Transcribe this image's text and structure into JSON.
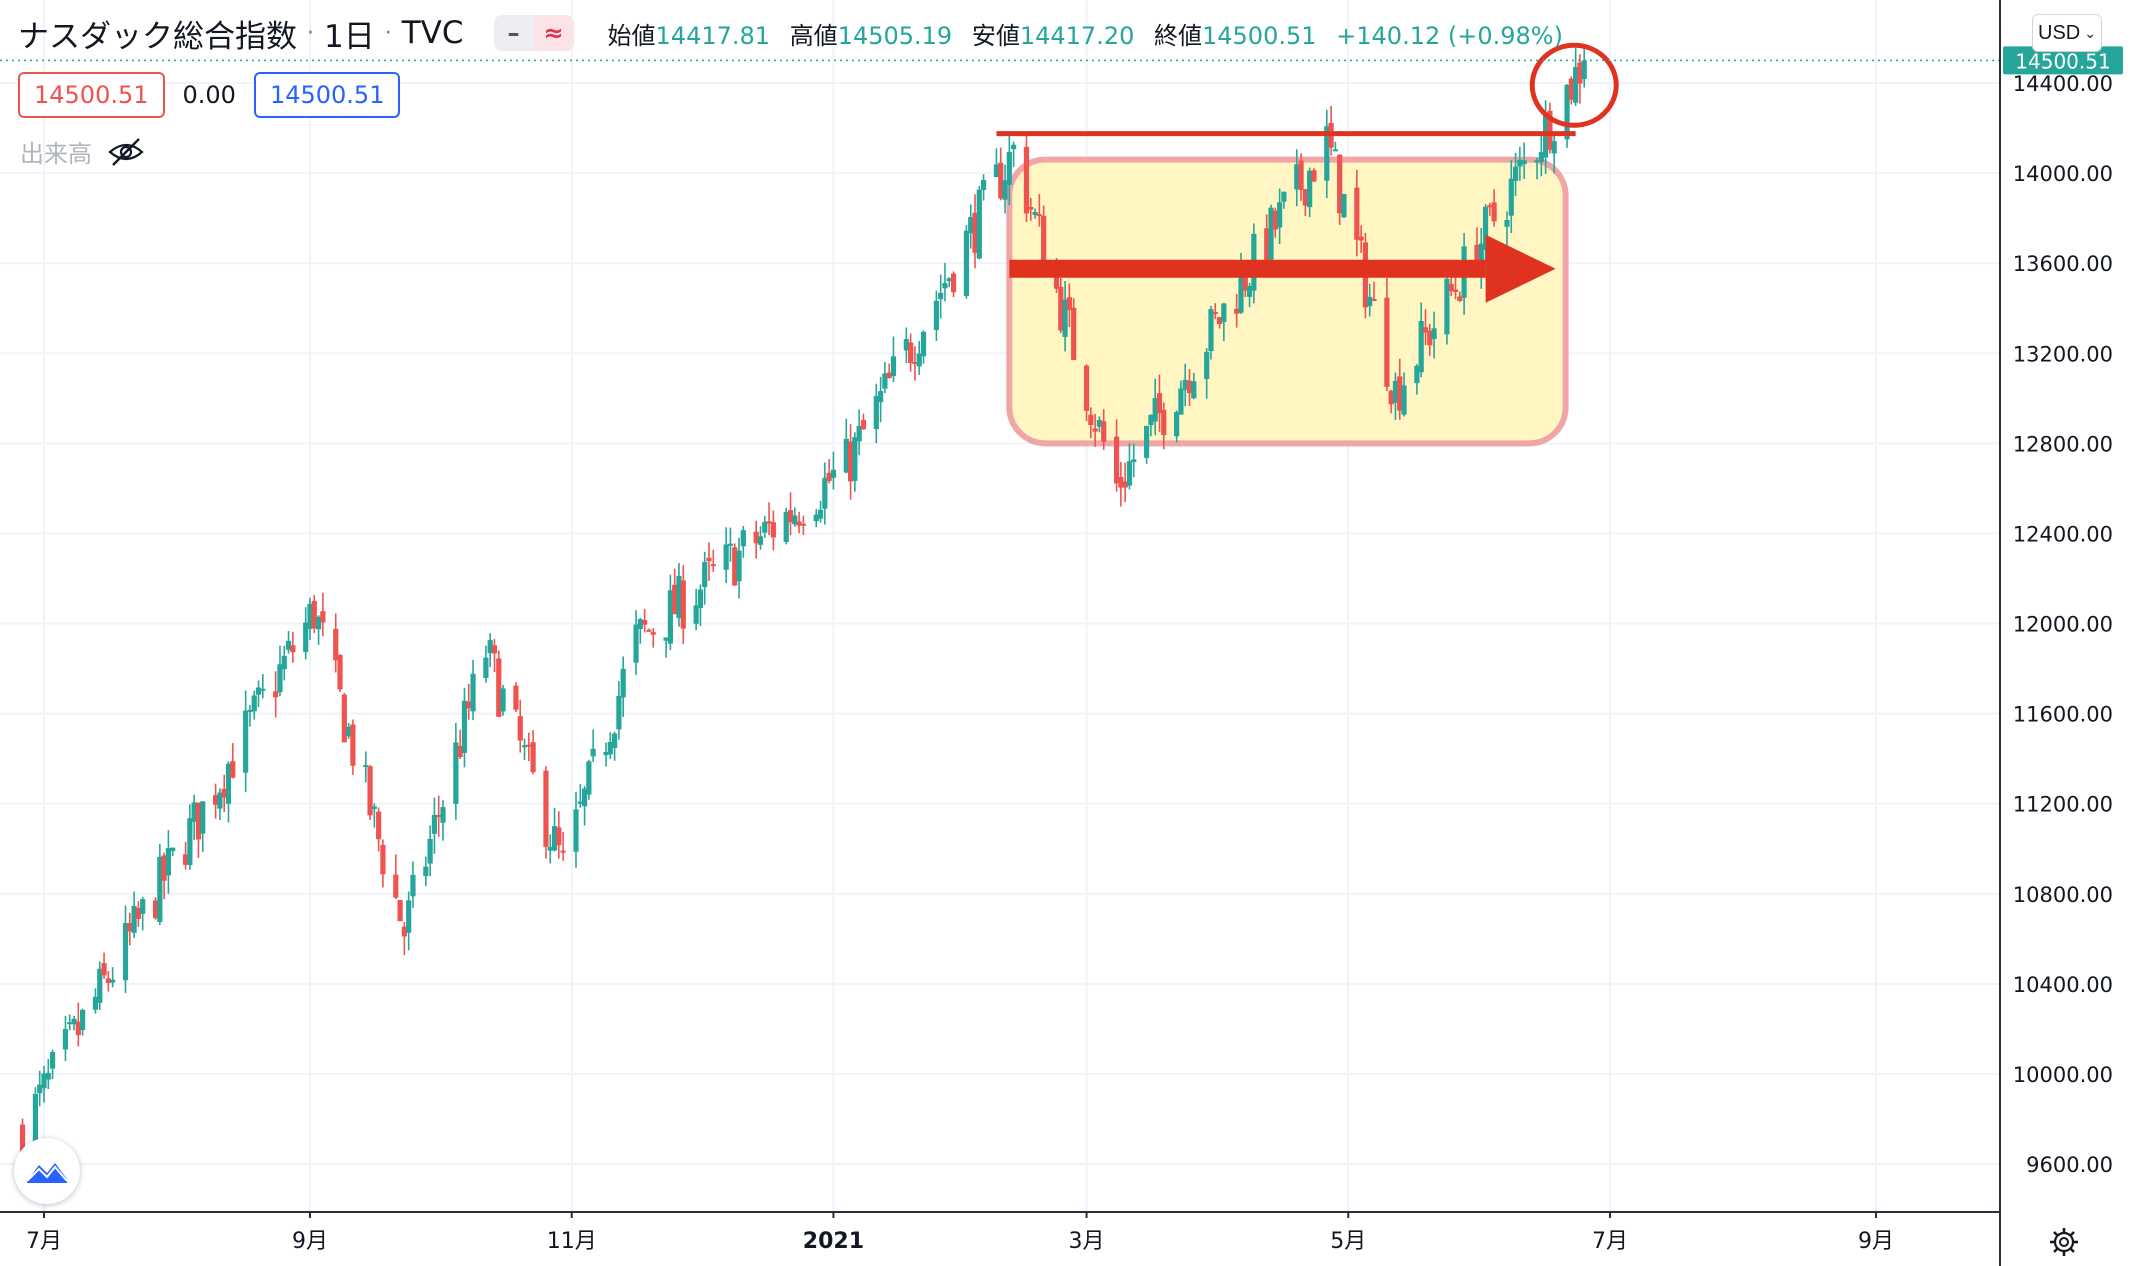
{
  "legend": {
    "symbol": "ナスダック総合指数",
    "sep1": "·",
    "interval": "1日",
    "sep2": "·",
    "source": "TVC",
    "pill_a": "–",
    "pill_b": "≈",
    "open_label": "始値",
    "open": "14417.81",
    "high_label": "高値",
    "high": "14505.19",
    "low_label": "安値",
    "low": "14417.20",
    "close_label": "終値",
    "close": "14500.51",
    "change": "+140.12 (+0.98%)"
  },
  "row2": {
    "bid": "14500.51",
    "spread": "0.00",
    "ask": "14500.51"
  },
  "volume_label": "出来高",
  "currency": "USD",
  "colors": {
    "up": "#26a69a",
    "down": "#ef5350",
    "last_price": "#26a69a",
    "annotation": "#e0331f",
    "range_box": "#fff6c4"
  },
  "chart_data": {
    "type": "candlestick",
    "title": "",
    "y_axis_ticks": [
      "9600.00",
      "10000.00",
      "10400.00",
      "10800.00",
      "11200.00",
      "11600.00",
      "12000.00",
      "12400.00",
      "12800.00",
      "13200.00",
      "13600.00",
      "14000.00",
      "14400.00"
    ],
    "x_axis_ticks": [
      "7月",
      "9月",
      "11月",
      "2021",
      "3月",
      "5月",
      "7月",
      "9月"
    ],
    "last_price_label": "14500.51",
    "ylim": [
      9400,
      14550
    ],
    "key_points": [
      {
        "date": "2020-06-26",
        "value": 9750
      },
      {
        "date": "2020-09-02",
        "value": 12056
      },
      {
        "date": "2020-09-23",
        "value": 10633
      },
      {
        "date": "2020-10-12",
        "value": 11876
      },
      {
        "date": "2020-10-30",
        "value": 10912
      },
      {
        "date": "2020-11-16",
        "value": 11925
      },
      {
        "date": "2021-01-04",
        "value": 12698
      },
      {
        "date": "2021-02-12",
        "value": 14095
      },
      {
        "date": "2021-03-08",
        "value": 12609
      },
      {
        "date": "2021-04-26",
        "value": 14138
      },
      {
        "date": "2021-05-12",
        "value": 13032
      },
      {
        "date": "2021-06-25",
        "value": 14500.51
      }
    ],
    "annotations": {
      "resistance_level": 14175,
      "range_box": {
        "from": "2021-02-11",
        "to": "2021-06-16",
        "low": 12800,
        "high": 14060
      },
      "breakout_circle": "2021-06-25"
    },
    "grid": true,
    "volume_visible": false
  }
}
